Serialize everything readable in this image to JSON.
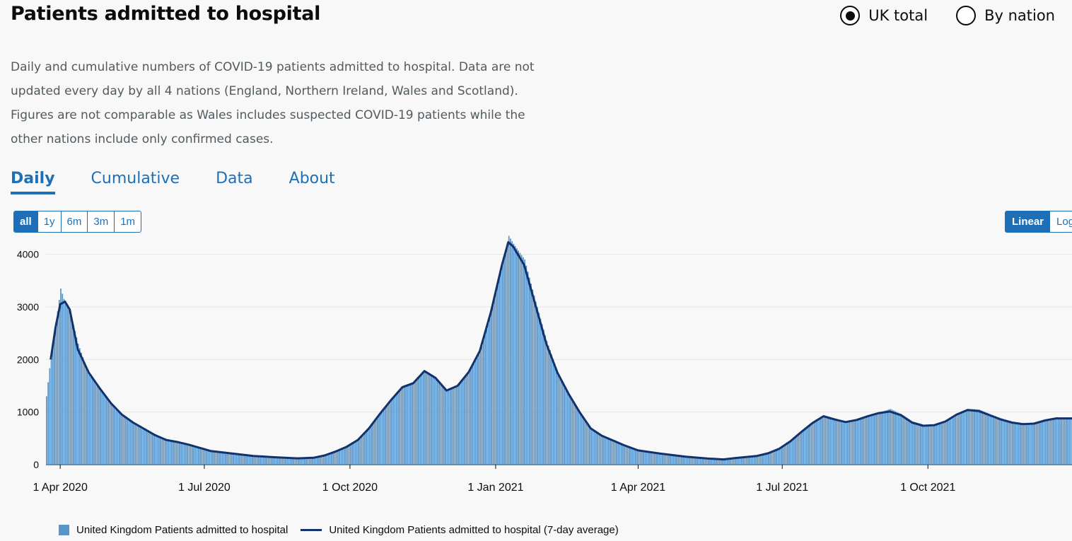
{
  "header": {
    "title": "Patients admitted to hospital",
    "radio_options": [
      {
        "label": "UK total",
        "checked": true
      },
      {
        "label": "By nation",
        "checked": false
      }
    ]
  },
  "description": "Daily and cumulative numbers of COVID-19 patients admitted to hospital. Data are not updated every day by all 4 nations (England, Northern Ireland, Wales and Scotland). Figures are not comparable as Wales includes suspected COVID-19 patients while the other nations include only confirmed cases.",
  "tabs": [
    {
      "label": "Daily",
      "active": true
    },
    {
      "label": "Cumulative",
      "active": false
    },
    {
      "label": "Data",
      "active": false
    },
    {
      "label": "About",
      "active": false
    }
  ],
  "range_buttons": [
    {
      "label": "all",
      "active": true
    },
    {
      "label": "1y",
      "active": false
    },
    {
      "label": "6m",
      "active": false
    },
    {
      "label": "3m",
      "active": false
    },
    {
      "label": "1m",
      "active": false
    }
  ],
  "scale_buttons": [
    {
      "label": "Linear",
      "active": true
    },
    {
      "label": "Log",
      "active": false
    }
  ],
  "colors": {
    "bar": "#5694ca",
    "line": "#12326e",
    "accent": "#1d70b8"
  },
  "chart_data": {
    "type": "bar",
    "x_start": "2020-03-23",
    "x_end": "2021-12-31",
    "ylim": [
      0,
      4600
    ],
    "yticks": [
      0,
      1000,
      2000,
      3000,
      4000
    ],
    "xticks": [
      {
        "date": "2020-04-01",
        "label": "1 Apr 2020"
      },
      {
        "date": "2020-07-01",
        "label": "1 Jul 2020"
      },
      {
        "date": "2020-10-01",
        "label": "1 Oct 2020"
      },
      {
        "date": "2021-01-01",
        "label": "1 Jan 2021"
      },
      {
        "date": "2021-04-01",
        "label": "1 Apr 2021"
      },
      {
        "date": "2021-07-01",
        "label": "1 Jul 2021"
      },
      {
        "date": "2021-10-01",
        "label": "1 Oct 2021"
      }
    ],
    "series": [
      {
        "name": "United Kingdom Patients admitted to hospital",
        "kind": "bar",
        "points": [
          [
            "2020-03-23",
            1300
          ],
          [
            "2020-03-26",
            2100
          ],
          [
            "2020-03-29",
            2700
          ],
          [
            "2020-04-01",
            3350
          ],
          [
            "2020-04-04",
            3050
          ],
          [
            "2020-04-07",
            2900
          ],
          [
            "2020-04-12",
            2300
          ],
          [
            "2020-04-19",
            1700
          ],
          [
            "2020-04-26",
            1450
          ],
          [
            "2020-05-03",
            1150
          ],
          [
            "2020-05-10",
            950
          ],
          [
            "2020-05-17",
            780
          ],
          [
            "2020-05-24",
            650
          ],
          [
            "2020-05-31",
            560
          ],
          [
            "2020-06-07",
            480
          ],
          [
            "2020-06-14",
            430
          ],
          [
            "2020-06-21",
            380
          ],
          [
            "2020-06-28",
            320
          ],
          [
            "2020-07-05",
            260
          ],
          [
            "2020-07-19",
            200
          ],
          [
            "2020-08-01",
            150
          ],
          [
            "2020-08-15",
            140
          ],
          [
            "2020-08-29",
            125
          ],
          [
            "2020-09-08",
            130
          ],
          [
            "2020-09-15",
            180
          ],
          [
            "2020-09-22",
            260
          ],
          [
            "2020-09-29",
            350
          ],
          [
            "2020-10-06",
            480
          ],
          [
            "2020-10-13",
            700
          ],
          [
            "2020-10-20",
            980
          ],
          [
            "2020-10-27",
            1250
          ],
          [
            "2020-11-03",
            1500
          ],
          [
            "2020-11-10",
            1570
          ],
          [
            "2020-11-17",
            1780
          ],
          [
            "2020-11-24",
            1650
          ],
          [
            "2020-12-01",
            1420
          ],
          [
            "2020-12-08",
            1500
          ],
          [
            "2020-12-15",
            1750
          ],
          [
            "2020-12-22",
            2150
          ],
          [
            "2020-12-29",
            2900
          ],
          [
            "2021-01-05",
            3800
          ],
          [
            "2021-01-09",
            4350
          ],
          [
            "2021-01-12",
            4200
          ],
          [
            "2021-01-19",
            3900
          ],
          [
            "2021-01-26",
            3100
          ],
          [
            "2021-02-02",
            2350
          ],
          [
            "2021-02-09",
            1750
          ],
          [
            "2021-02-16",
            1350
          ],
          [
            "2021-02-23",
            1000
          ],
          [
            "2021-03-02",
            700
          ],
          [
            "2021-03-09",
            560
          ],
          [
            "2021-03-16",
            470
          ],
          [
            "2021-03-23",
            380
          ],
          [
            "2021-04-01",
            280
          ],
          [
            "2021-04-15",
            210
          ],
          [
            "2021-05-01",
            150
          ],
          [
            "2021-05-15",
            120
          ],
          [
            "2021-05-25",
            105
          ],
          [
            "2021-06-01",
            130
          ],
          [
            "2021-06-08",
            150
          ],
          [
            "2021-06-15",
            170
          ],
          [
            "2021-06-22",
            220
          ],
          [
            "2021-06-29",
            300
          ],
          [
            "2021-07-06",
            450
          ],
          [
            "2021-07-13",
            620
          ],
          [
            "2021-07-20",
            800
          ],
          [
            "2021-07-27",
            940
          ],
          [
            "2021-08-03",
            880
          ],
          [
            "2021-08-10",
            820
          ],
          [
            "2021-08-17",
            860
          ],
          [
            "2021-08-24",
            930
          ],
          [
            "2021-08-31",
            990
          ],
          [
            "2021-09-07",
            1060
          ],
          [
            "2021-09-14",
            960
          ],
          [
            "2021-09-21",
            820
          ],
          [
            "2021-09-28",
            760
          ],
          [
            "2021-10-05",
            760
          ],
          [
            "2021-10-12",
            830
          ],
          [
            "2021-10-19",
            960
          ],
          [
            "2021-10-26",
            1060
          ],
          [
            "2021-11-02",
            1050
          ],
          [
            "2021-11-09",
            960
          ],
          [
            "2021-11-16",
            880
          ],
          [
            "2021-11-23",
            820
          ],
          [
            "2021-11-30",
            790
          ],
          [
            "2021-12-07",
            790
          ],
          [
            "2021-12-14",
            860
          ],
          [
            "2021-12-21",
            900
          ],
          [
            "2021-12-31",
            870
          ]
        ]
      },
      {
        "name": "United Kingdom Patients admitted to hospital (7-day average)",
        "kind": "line",
        "points": [
          [
            "2020-03-26",
            2000
          ],
          [
            "2020-03-29",
            2600
          ],
          [
            "2020-04-01",
            3050
          ],
          [
            "2020-04-04",
            3100
          ],
          [
            "2020-04-07",
            2950
          ],
          [
            "2020-04-12",
            2200
          ],
          [
            "2020-04-19",
            1750
          ],
          [
            "2020-04-26",
            1450
          ],
          [
            "2020-05-03",
            1170
          ],
          [
            "2020-05-10",
            950
          ],
          [
            "2020-05-17",
            800
          ],
          [
            "2020-05-24",
            680
          ],
          [
            "2020-05-31",
            560
          ],
          [
            "2020-06-07",
            470
          ],
          [
            "2020-06-14",
            430
          ],
          [
            "2020-06-21",
            380
          ],
          [
            "2020-06-28",
            320
          ],
          [
            "2020-07-05",
            260
          ],
          [
            "2020-07-19",
            210
          ],
          [
            "2020-08-01",
            165
          ],
          [
            "2020-08-15",
            140
          ],
          [
            "2020-08-29",
            120
          ],
          [
            "2020-09-08",
            130
          ],
          [
            "2020-09-15",
            175
          ],
          [
            "2020-09-22",
            250
          ],
          [
            "2020-09-29",
            340
          ],
          [
            "2020-10-06",
            470
          ],
          [
            "2020-10-13",
            690
          ],
          [
            "2020-10-20",
            970
          ],
          [
            "2020-10-27",
            1230
          ],
          [
            "2020-11-03",
            1470
          ],
          [
            "2020-11-10",
            1550
          ],
          [
            "2020-11-17",
            1780
          ],
          [
            "2020-11-24",
            1650
          ],
          [
            "2020-12-01",
            1410
          ],
          [
            "2020-12-08",
            1500
          ],
          [
            "2020-12-15",
            1760
          ],
          [
            "2020-12-22",
            2160
          ],
          [
            "2020-12-29",
            2900
          ],
          [
            "2021-01-05",
            3800
          ],
          [
            "2021-01-09",
            4230
          ],
          [
            "2021-01-12",
            4150
          ],
          [
            "2021-01-19",
            3800
          ],
          [
            "2021-01-26",
            3050
          ],
          [
            "2021-02-02",
            2300
          ],
          [
            "2021-02-09",
            1750
          ],
          [
            "2021-02-16",
            1350
          ],
          [
            "2021-02-23",
            1000
          ],
          [
            "2021-03-02",
            690
          ],
          [
            "2021-03-09",
            550
          ],
          [
            "2021-03-16",
            460
          ],
          [
            "2021-03-23",
            370
          ],
          [
            "2021-04-01",
            270
          ],
          [
            "2021-04-15",
            210
          ],
          [
            "2021-05-01",
            150
          ],
          [
            "2021-05-15",
            115
          ],
          [
            "2021-05-25",
            100
          ],
          [
            "2021-06-01",
            125
          ],
          [
            "2021-06-08",
            145
          ],
          [
            "2021-06-15",
            165
          ],
          [
            "2021-06-22",
            215
          ],
          [
            "2021-06-29",
            300
          ],
          [
            "2021-07-06",
            440
          ],
          [
            "2021-07-13",
            620
          ],
          [
            "2021-07-20",
            790
          ],
          [
            "2021-07-27",
            920
          ],
          [
            "2021-08-03",
            860
          ],
          [
            "2021-08-10",
            810
          ],
          [
            "2021-08-17",
            850
          ],
          [
            "2021-08-24",
            920
          ],
          [
            "2021-08-31",
            980
          ],
          [
            "2021-09-07",
            1010
          ],
          [
            "2021-09-14",
            940
          ],
          [
            "2021-09-21",
            800
          ],
          [
            "2021-09-28",
            740
          ],
          [
            "2021-10-05",
            750
          ],
          [
            "2021-10-12",
            820
          ],
          [
            "2021-10-19",
            950
          ],
          [
            "2021-10-26",
            1040
          ],
          [
            "2021-11-02",
            1020
          ],
          [
            "2021-11-09",
            940
          ],
          [
            "2021-11-16",
            860
          ],
          [
            "2021-11-23",
            800
          ],
          [
            "2021-11-30",
            770
          ],
          [
            "2021-12-07",
            780
          ],
          [
            "2021-12-14",
            840
          ],
          [
            "2021-12-21",
            880
          ],
          [
            "2021-12-31",
            880
          ]
        ]
      }
    ],
    "legend_position": "bottom-left",
    "grid": true
  }
}
